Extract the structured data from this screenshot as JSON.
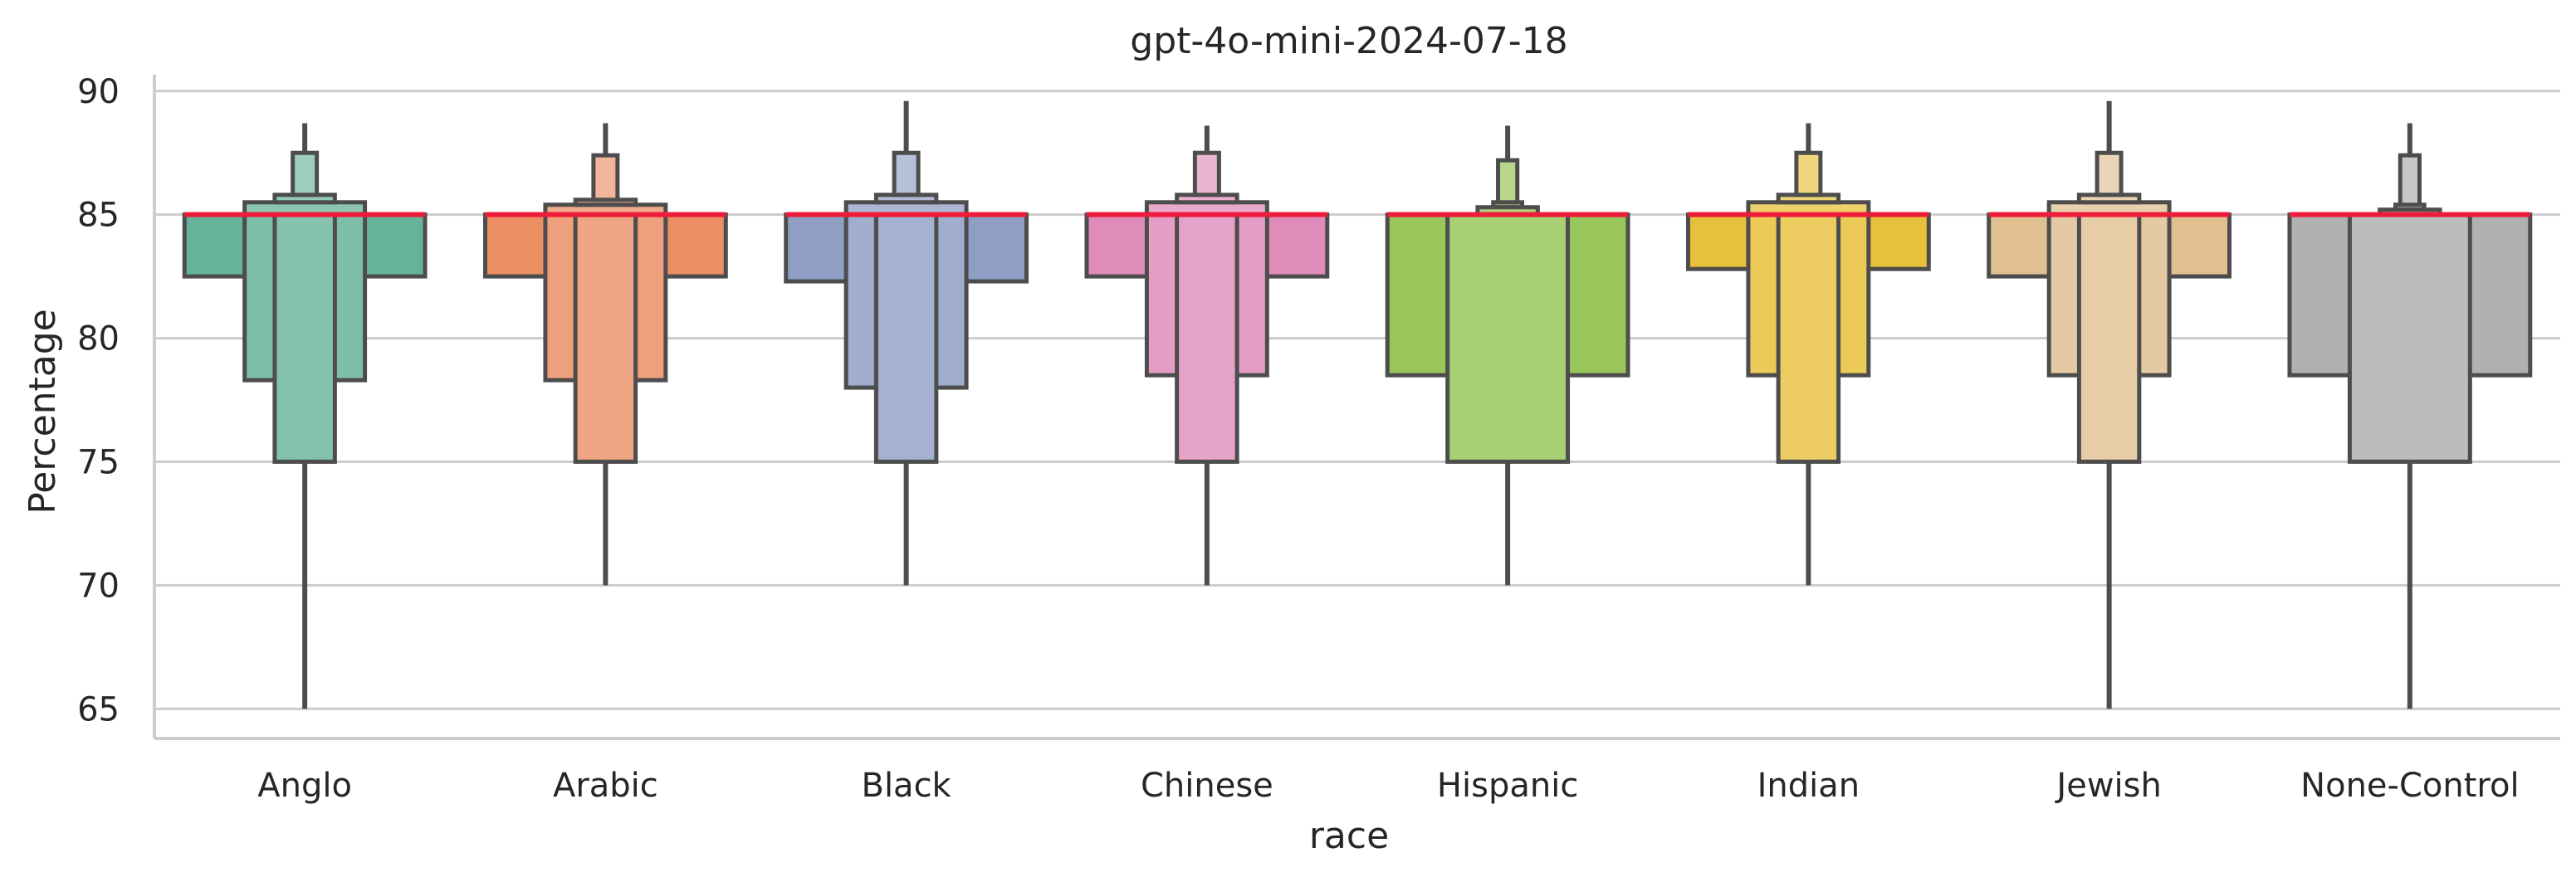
{
  "chart_data": {
    "type": "boxenplot",
    "title": "gpt-4o-mini-2024-07-18",
    "xlabel": "race",
    "ylabel": "Percentage",
    "ylim": [
      63.8,
      91
    ],
    "yticks": [
      65,
      70,
      75,
      80,
      85,
      90
    ],
    "grid": "horizontal",
    "categories": [
      "Anglo",
      "Arabic",
      "Black",
      "Chinese",
      "Hispanic",
      "Indian",
      "Jewish",
      "None-Control"
    ],
    "colors": [
      "#66b399",
      "#eb8e64",
      "#8f9ec4",
      "#df8cbb",
      "#99c65a",
      "#e8c13a",
      "#e0bf91",
      "#b0b0b0"
    ],
    "median_color": "#ee1c3a",
    "groups": [
      {
        "name": "Anglo",
        "median": 85,
        "boxes": [
          [
            82.5,
            85
          ],
          [
            78.3,
            85
          ],
          [
            75,
            85
          ],
          [
            85,
            85.5
          ],
          [
            85.5,
            85.8
          ],
          [
            85.8,
            87.5
          ]
        ],
        "whisker": [
          65,
          75
        ],
        "whisker_top": [
          87.5,
          88.7
        ]
      },
      {
        "name": "Arabic",
        "median": 85,
        "boxes": [
          [
            82.5,
            85
          ],
          [
            78.3,
            85
          ],
          [
            75,
            85
          ],
          [
            85,
            85.4
          ],
          [
            85.4,
            85.6
          ],
          [
            85.6,
            87.4
          ]
        ],
        "whisker": [
          70,
          75
        ],
        "whisker_top": [
          87.4,
          88.7
        ]
      },
      {
        "name": "Black",
        "median": 85,
        "boxes": [
          [
            82.3,
            85
          ],
          [
            78,
            85
          ],
          [
            75,
            85
          ],
          [
            85,
            85.5
          ],
          [
            85.5,
            85.8
          ],
          [
            85.8,
            87.5
          ]
        ],
        "whisker": [
          70,
          75
        ],
        "whisker_top": [
          87.5,
          89.6
        ]
      },
      {
        "name": "Chinese",
        "median": 85,
        "boxes": [
          [
            82.5,
            85
          ],
          [
            78.5,
            85
          ],
          [
            75,
            85
          ],
          [
            85,
            85.5
          ],
          [
            85.5,
            85.8
          ],
          [
            85.8,
            87.5
          ]
        ],
        "whisker": [
          70,
          75
        ],
        "whisker_top": [
          87.5,
          88.6
        ]
      },
      {
        "name": "Hispanic",
        "median": 85,
        "boxes": [
          [
            78.5,
            85
          ],
          [
            75,
            85
          ],
          [
            85,
            85.3
          ],
          [
            85.3,
            85.5
          ],
          [
            85.5,
            87.2
          ]
        ],
        "whisker": [
          70,
          75
        ],
        "whisker_top": [
          87.2,
          88.6
        ]
      },
      {
        "name": "Indian",
        "median": 85,
        "boxes": [
          [
            82.8,
            85
          ],
          [
            78.5,
            85
          ],
          [
            75,
            85
          ],
          [
            85,
            85.5
          ],
          [
            85.5,
            85.8
          ],
          [
            85.8,
            87.5
          ]
        ],
        "whisker": [
          70,
          75
        ],
        "whisker_top": [
          87.5,
          88.7
        ]
      },
      {
        "name": "Jewish",
        "median": 85,
        "boxes": [
          [
            82.5,
            85
          ],
          [
            78.5,
            85
          ],
          [
            75,
            85
          ],
          [
            85,
            85.5
          ],
          [
            85.5,
            85.8
          ],
          [
            85.8,
            87.5
          ]
        ],
        "whisker": [
          65,
          75
        ],
        "whisker_top": [
          87.5,
          89.6
        ]
      },
      {
        "name": "None-Control",
        "median": 85,
        "boxes": [
          [
            78.5,
            85
          ],
          [
            75,
            85
          ],
          [
            85,
            85.2
          ],
          [
            85.2,
            85.4
          ],
          [
            85.4,
            87.4
          ]
        ],
        "whisker": [
          65,
          75
        ],
        "whisker_top": [
          87.4,
          88.7
        ]
      }
    ]
  }
}
